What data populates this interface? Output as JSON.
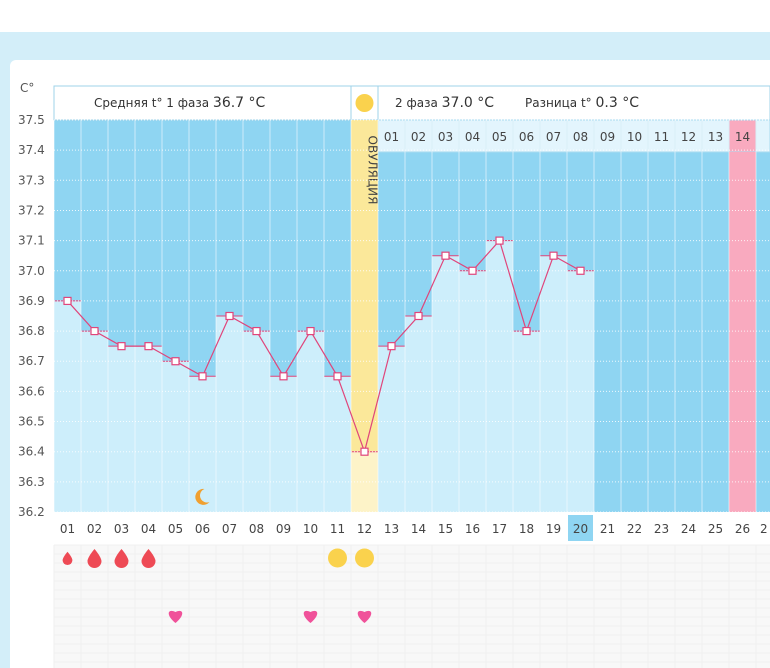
{
  "chart_data": {
    "type": "line",
    "y_axis_label": "C°",
    "ylim": [
      36.2,
      37.5
    ],
    "y_ticks": [
      "37.5",
      "37.4",
      "37.3",
      "37.2",
      "37.1",
      "37.0",
      "36.9",
      "36.8",
      "36.7",
      "36.6",
      "36.5",
      "36.4",
      "36.3",
      "36.2"
    ],
    "x_categories": [
      "01",
      "02",
      "03",
      "04",
      "05",
      "06",
      "07",
      "08",
      "09",
      "10",
      "11",
      "12",
      "13",
      "14",
      "15",
      "16",
      "17",
      "18",
      "19",
      "20",
      "21",
      "22",
      "23",
      "24",
      "25",
      "26"
    ],
    "series": [
      {
        "values": [
          36.9,
          36.8,
          36.75,
          36.75,
          36.7,
          36.65,
          36.85,
          36.8,
          36.65,
          36.8,
          36.65,
          36.4,
          36.75,
          36.85,
          37.05,
          37.0,
          37.1,
          36.8,
          37.05,
          37.0
        ]
      }
    ],
    "current_day": "20",
    "ovulation_day": "12",
    "expected_period_day": "26",
    "phase2_day_labels": [
      "01",
      "02",
      "03",
      "04",
      "05",
      "06",
      "07",
      "08",
      "09",
      "10",
      "11",
      "12",
      "13",
      "14"
    ],
    "ovulation_label": "ОВУЛЯЦИЯ",
    "moon_day": "06",
    "header": {
      "phase1_label": "Средняя t° 1 фаза",
      "phase1_value": "36.7 °С",
      "phase2_label": "2 фаза",
      "phase2_value": "37.0 °С",
      "diff_label": "Разница t°",
      "diff_value": "0.3 °С"
    },
    "markers": {
      "drops": [
        "01",
        "02",
        "03",
        "04"
      ],
      "circles": [
        "11",
        "12"
      ],
      "hearts": [
        "05",
        "10",
        "12"
      ]
    },
    "colors": {
      "phase_fill": "#8fd5f2",
      "bar_fill": "#cdeefb",
      "line": "#e0457b",
      "ovulation": "#fbe89a",
      "period": "#f9aabf",
      "drop": "#ee4a55",
      "heart": "#f0529a",
      "circle": "#fad24d",
      "moon": "#f0a030"
    }
  }
}
